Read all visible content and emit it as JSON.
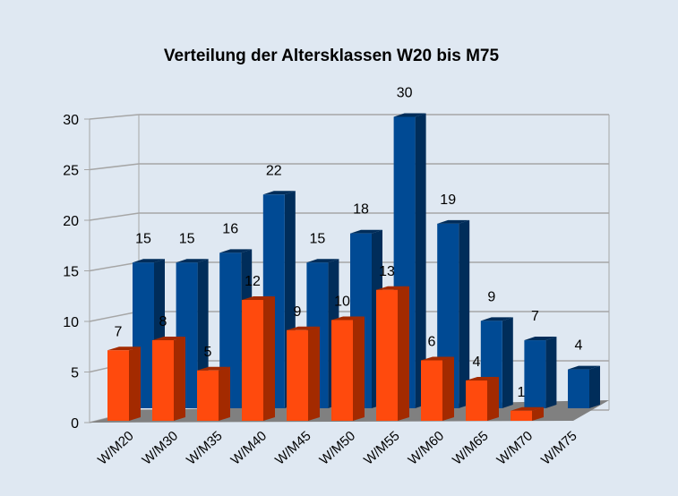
{
  "chart_data": {
    "type": "bar",
    "title": "Verteilung der Altersklassen W20 bis M75",
    "categories": [
      "W/M20",
      "W/M30",
      "W/M35",
      "W/M40",
      "W/M45",
      "W/M50",
      "W/M55",
      "W/M60",
      "W/M65",
      "W/M70",
      "W/M75"
    ],
    "series": [
      {
        "values": [
          7,
          8,
          5,
          12,
          9,
          10,
          13,
          6,
          4,
          1,
          0
        ],
        "color": "#ff4a0d",
        "side_color": "#a32a00"
      },
      {
        "values": [
          15,
          15,
          16,
          22,
          15,
          18,
          30,
          19,
          9,
          7,
          4
        ],
        "color": "#004a94",
        "side_color": "#002d5a"
      }
    ],
    "ylim": [
      0,
      30
    ],
    "yticks": [
      0,
      5,
      10,
      15,
      20,
      25,
      30
    ],
    "grid": true,
    "style": "3d-bar",
    "colors": {
      "background": "#dfe8f2",
      "floor": "#808080",
      "grid": "#a6a6a6"
    }
  }
}
